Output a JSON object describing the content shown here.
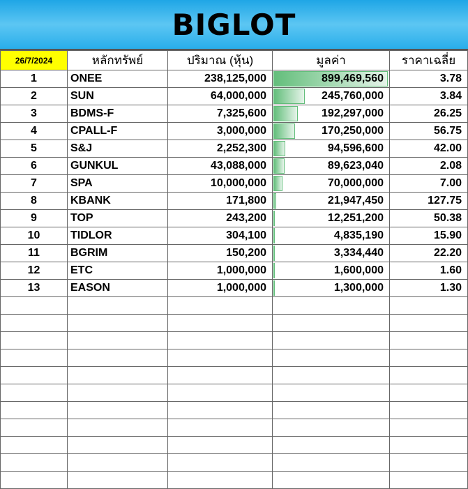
{
  "title": "BIGLOT",
  "headers": {
    "date": "26/7/2024",
    "symbol": "หลักทรัพย์",
    "volume": "ปริมาณ (หุ้น)",
    "value": "มูลค่า",
    "avg_price": "ราคาเฉลี่ย"
  },
  "bar_color": "#63be7b",
  "rows": [
    {
      "no": "1",
      "symbol": "ONEE",
      "volume": "238,125,000",
      "value": "899,469,560",
      "avg": "3.78",
      "v": 899469560
    },
    {
      "no": "2",
      "symbol": "SUN",
      "volume": "64,000,000",
      "value": "245,760,000",
      "avg": "3.84",
      "v": 245760000
    },
    {
      "no": "3",
      "symbol": "BDMS-F",
      "volume": "7,325,600",
      "value": "192,297,000",
      "avg": "26.25",
      "v": 192297000
    },
    {
      "no": "4",
      "symbol": "CPALL-F",
      "volume": "3,000,000",
      "value": "170,250,000",
      "avg": "56.75",
      "v": 170250000
    },
    {
      "no": "5",
      "symbol": "S&J",
      "volume": "2,252,300",
      "value": "94,596,600",
      "avg": "42.00",
      "v": 94596600
    },
    {
      "no": "6",
      "symbol": "GUNKUL",
      "volume": "43,088,000",
      "value": "89,623,040",
      "avg": "2.08",
      "v": 89623040
    },
    {
      "no": "7",
      "symbol": "SPA",
      "volume": "10,000,000",
      "value": "70,000,000",
      "avg": "7.00",
      "v": 70000000
    },
    {
      "no": "8",
      "symbol": "KBANK",
      "volume": "171,800",
      "value": "21,947,450",
      "avg": "127.75",
      "v": 21947450
    },
    {
      "no": "9",
      "symbol": "TOP",
      "volume": "243,200",
      "value": "12,251,200",
      "avg": "50.38",
      "v": 12251200
    },
    {
      "no": "10",
      "symbol": "TIDLOR",
      "volume": "304,100",
      "value": "4,835,190",
      "avg": "15.90",
      "v": 4835190
    },
    {
      "no": "11",
      "symbol": "BGRIM",
      "volume": "150,200",
      "value": "3,334,440",
      "avg": "22.20",
      "v": 3334440
    },
    {
      "no": "12",
      "symbol": "ETC",
      "volume": "1,000,000",
      "value": "1,600,000",
      "avg": "1.60",
      "v": 1600000
    },
    {
      "no": "13",
      "symbol": "EASON",
      "volume": "1,000,000",
      "value": "1,300,000",
      "avg": "1.30",
      "v": 1300000
    }
  ]
}
